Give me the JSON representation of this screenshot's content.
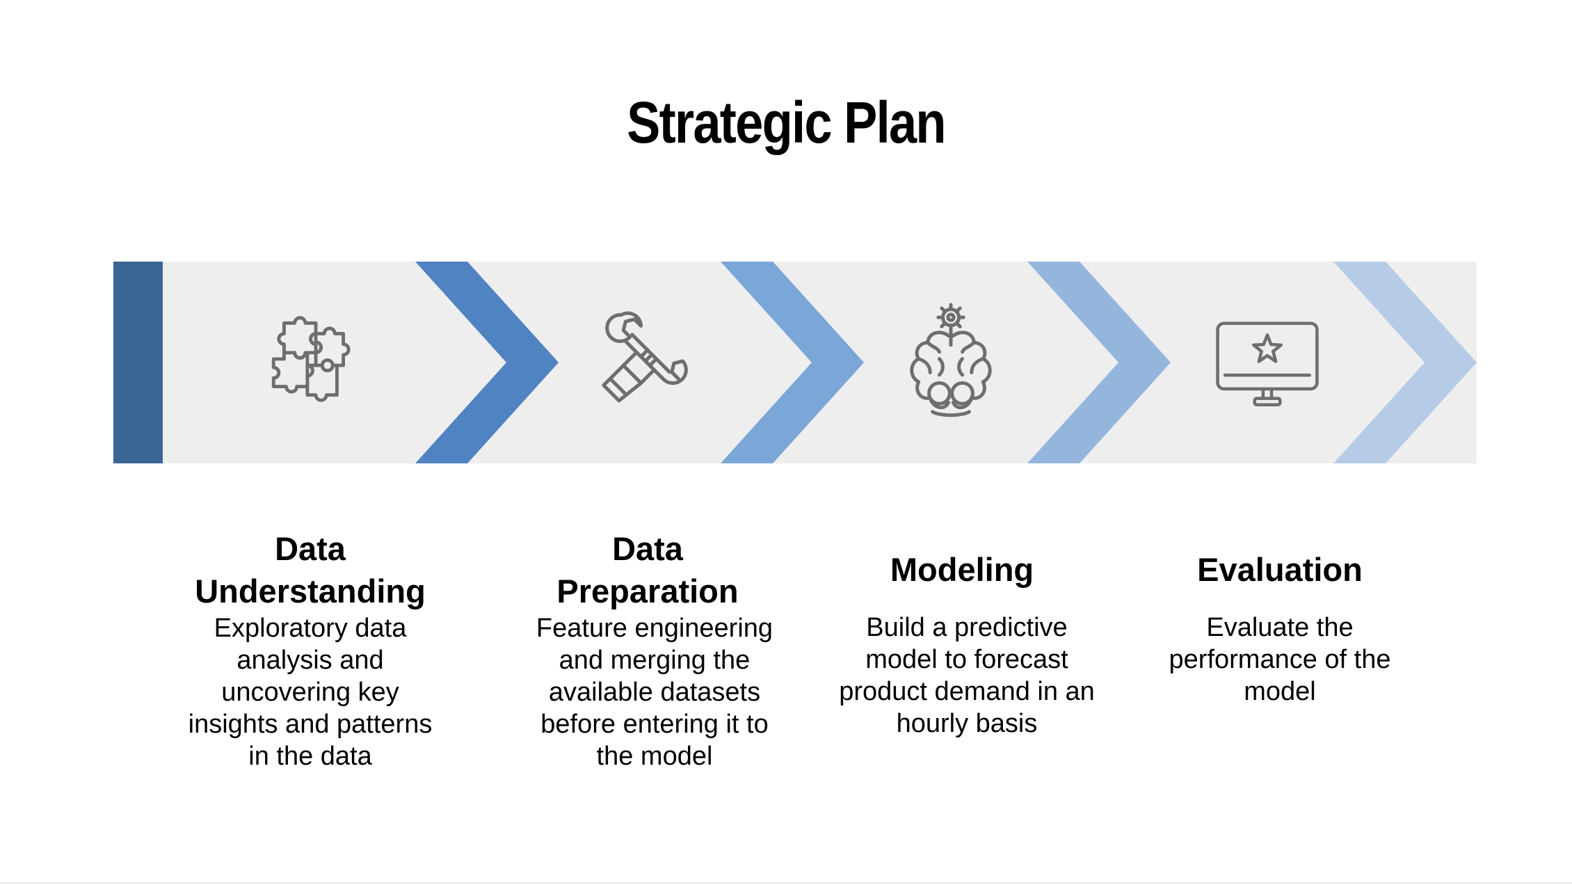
{
  "title": "Strategic Plan",
  "colors": {
    "band_background": "#eeeeee",
    "start_bar": "#3b6592",
    "chevron_1": "#4f83c2",
    "chevron_2": "#7aa6d8",
    "chevron_3": "#94b5dc",
    "chevron_4": "#b6cce6",
    "icon_stroke": "#6e6e6e"
  },
  "steps": [
    {
      "title": "Data Understanding",
      "description": "Exploratory data analysis and uncovering key insights and patterns in the data",
      "icon": "puzzle-icon"
    },
    {
      "title": "Data Preparation",
      "description": "Feature engineering and merging the available datasets before entering it to the model",
      "icon": "wrench-hand-icon"
    },
    {
      "title": "Modeling",
      "description": "Build a predictive model to forecast product demand in an hourly basis",
      "icon": "brain-gear-icon"
    },
    {
      "title": "Evaluation",
      "description": "Evaluate the performance of the model",
      "icon": "monitor-star-icon"
    }
  ]
}
